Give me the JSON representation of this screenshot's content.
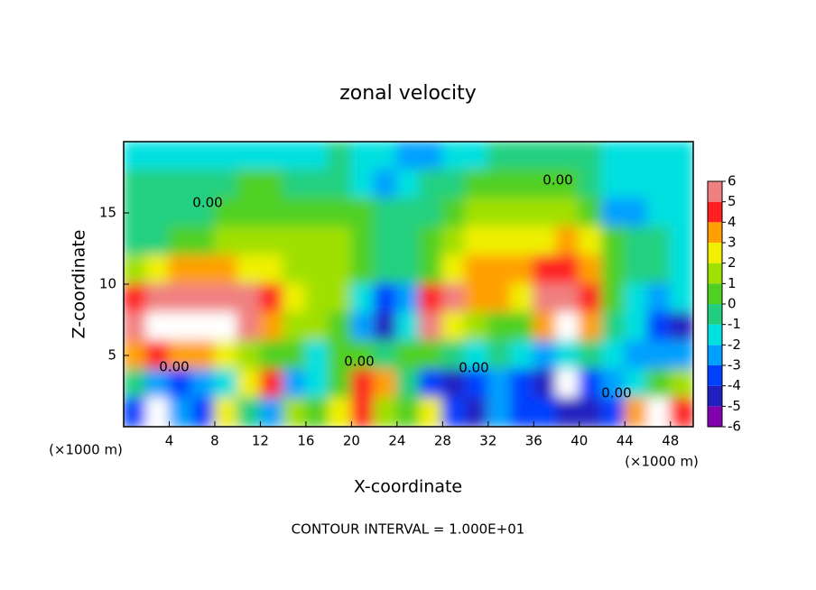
{
  "chart_data": {
    "type": "heatmap",
    "title": "zonal velocity",
    "x_label": "X-coordinate",
    "y_label": "Z-coordinate",
    "x_unit": "(×1000 m)",
    "footer": "CONTOUR INTERVAL = 1.000E+01",
    "contour_labels": [
      "0.00",
      "0.00",
      "0.00",
      "0.00",
      "0.00",
      "0.00"
    ],
    "xlim": [
      0,
      50
    ],
    "xticks": [
      4,
      8,
      12,
      16,
      20,
      24,
      28,
      32,
      36,
      40,
      44,
      48
    ],
    "ylim": [
      0,
      20
    ],
    "yticks": [
      5,
      10,
      15
    ],
    "x": [
      1,
      3,
      5,
      7,
      9,
      11,
      13,
      15,
      17,
      19,
      21,
      23,
      25,
      27,
      29,
      31,
      33,
      35,
      37,
      39,
      41,
      43,
      45,
      47,
      49
    ],
    "y": [
      19,
      17,
      15,
      13,
      11,
      9,
      7,
      5,
      3,
      1
    ],
    "z": [
      [
        -2,
        -2,
        -2,
        -2,
        -2,
        -2,
        -2,
        -2,
        -2,
        -1,
        -2,
        -2,
        -3,
        -3,
        -2,
        -2,
        -1,
        -1,
        -1,
        -1,
        -1,
        -2,
        -2,
        -2,
        -2
      ],
      [
        -1,
        -1,
        -1,
        -1,
        -1,
        0,
        0,
        -1,
        -1,
        -1,
        -2,
        -3,
        -2,
        -1,
        -1,
        0,
        0,
        0,
        0,
        0,
        -1,
        -2,
        -2,
        -2,
        -2
      ],
      [
        -1,
        -1,
        -1,
        -1,
        0,
        0,
        0,
        0,
        0,
        0,
        0,
        -1,
        -1,
        -1,
        0,
        1,
        1,
        1,
        1,
        1,
        0,
        -3,
        -3,
        -2,
        -2
      ],
      [
        -1,
        -1,
        0,
        0,
        1,
        1,
        1,
        1,
        1,
        1,
        0,
        -1,
        -1,
        0,
        1,
        2,
        2,
        2,
        2,
        3,
        2,
        0,
        -1,
        -1,
        -2
      ],
      [
        1,
        2,
        3,
        3,
        3,
        2,
        2,
        1,
        1,
        1,
        0,
        -1,
        -1,
        0,
        2,
        3,
        3,
        3,
        4,
        4,
        3,
        0,
        -1,
        -1,
        -2
      ],
      [
        4,
        5,
        5.5,
        5.5,
        5.5,
        5,
        4,
        2,
        1,
        1,
        -2,
        -4,
        -3,
        4,
        5,
        3,
        3,
        2,
        5,
        5.5,
        4,
        0,
        -2,
        -3,
        -2
      ],
      [
        5.5,
        7,
        7,
        6.5,
        6.5,
        5,
        3,
        1,
        1,
        0,
        -3,
        -5,
        -2,
        5,
        2,
        1,
        0,
        0,
        3,
        7,
        3,
        -1,
        -2,
        -4,
        -5
      ],
      [
        3,
        4,
        3,
        3,
        2,
        1,
        0,
        0,
        -2,
        0,
        0,
        -1,
        0,
        0,
        -1,
        -2,
        -1,
        -2,
        -3,
        -2,
        -1,
        -2,
        -3,
        -3,
        -3
      ],
      [
        -1,
        -3,
        -4,
        -3,
        -2,
        2,
        4,
        -3,
        -2,
        0,
        4,
        3,
        -1,
        -4,
        -5,
        -4,
        -3,
        -4,
        -5,
        7,
        -4,
        -3,
        -2,
        0,
        1
      ],
      [
        -4,
        7,
        -3,
        -4,
        2,
        -1,
        -3,
        1,
        0,
        2,
        4,
        1,
        0,
        2,
        -4,
        -5,
        -3,
        -4,
        -4,
        -5,
        -5,
        -4,
        3,
        7,
        4
      ]
    ],
    "colorbar": {
      "ticks": [
        -6,
        -5,
        -4,
        -3,
        -2,
        -1,
        0,
        1,
        2,
        3,
        4,
        5,
        6
      ],
      "colors": [
        "#8000b0",
        "#2020c0",
        "#0040ff",
        "#00a0ff",
        "#00e0e0",
        "#20d080",
        "#50d020",
        "#a0e000",
        "#f0f000",
        "#ffa000",
        "#ff2020",
        "#f08080"
      ],
      "over_color": "#ffffff",
      "under_color": "#8000b0"
    }
  }
}
